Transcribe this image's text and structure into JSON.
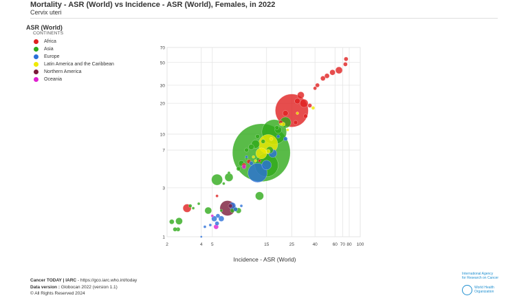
{
  "header": {
    "title": "Mortality - ASR (World) vs Incidence - ASR (World), Females, in 2022",
    "subtitle": "Cervix uteri"
  },
  "legend": {
    "title": "ASR (World)",
    "subtitle": "CONTINENTS",
    "items": [
      {
        "label": "Africa",
        "color": "#e02020"
      },
      {
        "label": "Asia",
        "color": "#2faa1a"
      },
      {
        "label": "Europe",
        "color": "#2a6fd8"
      },
      {
        "label": "Latin America and the Caribbean",
        "color": "#f0ea00"
      },
      {
        "label": "Northern America",
        "color": "#7a1a3a"
      },
      {
        "label": "Oceania",
        "color": "#e020d0"
      }
    ]
  },
  "footer": {
    "line1_bold": "Cancer TODAY | IARC",
    "line1_rest": " - https://gco.iarc.who.int/today",
    "line2_bold": "Data version :",
    "line2_rest": " Globocan 2022 (version 1.1)",
    "line3": "© All Rights Reserved 2024"
  },
  "logos": {
    "iarc_line1": "International Agency",
    "iarc_line2": "for Research on Cancer",
    "who_line1": "World Health",
    "who_line2": "Organization"
  },
  "chart_data": {
    "type": "scatter",
    "xlabel": "Incidence - ASR (World)",
    "ylabel": "",
    "xscale": "log",
    "yscale": "log",
    "xlim": [
      2,
      100
    ],
    "ylim": [
      1,
      70
    ],
    "xticks": [
      2,
      4,
      5,
      15,
      25,
      40,
      60,
      70,
      80,
      100
    ],
    "yticks": [
      1,
      3,
      7,
      10,
      20,
      30,
      50,
      70
    ],
    "grid": true,
    "legend_position": "top-left",
    "series": [
      {
        "name": "Africa",
        "color": "#e02020",
        "points": [
          {
            "x": 25.0,
            "y": 17.0,
            "size": 24
          },
          {
            "x": 30.0,
            "y": 24.0,
            "size": 5
          },
          {
            "x": 32.0,
            "y": 20.0,
            "size": 6
          },
          {
            "x": 28.0,
            "y": 21.0,
            "size": 4
          },
          {
            "x": 22.0,
            "y": 16.0,
            "size": 4
          },
          {
            "x": 36.0,
            "y": 19.0,
            "size": 3
          },
          {
            "x": 27.0,
            "y": 13.0,
            "size": 3
          },
          {
            "x": 33.0,
            "y": 15.0,
            "size": 3
          },
          {
            "x": 20.0,
            "y": 13.0,
            "size": 3
          },
          {
            "x": 40.0,
            "y": 28.0,
            "size": 2.5
          },
          {
            "x": 42.0,
            "y": 30.0,
            "size": 3
          },
          {
            "x": 47.0,
            "y": 35.0,
            "size": 3.5
          },
          {
            "x": 51.0,
            "y": 37.0,
            "size": 3.5
          },
          {
            "x": 57.0,
            "y": 40.0,
            "size": 4
          },
          {
            "x": 65.0,
            "y": 42.0,
            "size": 5
          },
          {
            "x": 74.0,
            "y": 48.0,
            "size": 3
          },
          {
            "x": 75.0,
            "y": 54.0,
            "size": 3
          },
          {
            "x": 3.0,
            "y": 1.9,
            "size": 6
          },
          {
            "x": 9.5,
            "y": 5.0,
            "size": 3
          },
          {
            "x": 10.5,
            "y": 5.4,
            "size": 3
          },
          {
            "x": 13.0,
            "y": 5.5,
            "size": 2
          },
          {
            "x": 5.5,
            "y": 2.5,
            "size": 2
          }
        ]
      },
      {
        "name": "Asia",
        "color": "#2faa1a",
        "points": [
          {
            "x": 13.5,
            "y": 6.6,
            "size": 42
          },
          {
            "x": 17.5,
            "y": 10.5,
            "size": 18
          },
          {
            "x": 15.0,
            "y": 5.0,
            "size": 17
          },
          {
            "x": 22.0,
            "y": 13.0,
            "size": 8
          },
          {
            "x": 19.0,
            "y": 11.0,
            "size": 5
          },
          {
            "x": 12.0,
            "y": 8.0,
            "size": 6
          },
          {
            "x": 11.0,
            "y": 7.5,
            "size": 4
          },
          {
            "x": 10.0,
            "y": 7.0,
            "size": 3
          },
          {
            "x": 9.0,
            "y": 5.2,
            "size": 4
          },
          {
            "x": 8.5,
            "y": 4.6,
            "size": 3
          },
          {
            "x": 16.0,
            "y": 7.0,
            "size": 5
          },
          {
            "x": 5.5,
            "y": 3.6,
            "size": 8
          },
          {
            "x": 7.0,
            "y": 3.8,
            "size": 6
          },
          {
            "x": 13.0,
            "y": 2.5,
            "size": 6
          },
          {
            "x": 4.6,
            "y": 1.8,
            "size": 5
          },
          {
            "x": 3.2,
            "y": 2.0,
            "size": 2.5
          },
          {
            "x": 3.4,
            "y": 1.9,
            "size": 2
          },
          {
            "x": 3.8,
            "y": 2.1,
            "size": 2
          },
          {
            "x": 2.55,
            "y": 1.42,
            "size": 5
          },
          {
            "x": 2.2,
            "y": 1.4,
            "size": 3.5
          },
          {
            "x": 2.5,
            "y": 1.18,
            "size": 3
          },
          {
            "x": 2.35,
            "y": 1.18,
            "size": 3
          },
          {
            "x": 8.5,
            "y": 1.8,
            "size": 4
          },
          {
            "x": 8.0,
            "y": 1.85,
            "size": 3
          },
          {
            "x": 7.5,
            "y": 1.8,
            "size": 3
          },
          {
            "x": 6.0,
            "y": 1.8,
            "size": 2
          },
          {
            "x": 10.0,
            "y": 5.8,
            "size": 2
          },
          {
            "x": 12.5,
            "y": 9.5,
            "size": 3
          },
          {
            "x": 14.0,
            "y": 8.5,
            "size": 3
          },
          {
            "x": 18.5,
            "y": 11.6,
            "size": 3
          },
          {
            "x": 7.0,
            "y": 4.2,
            "size": 2
          },
          {
            "x": 6.3,
            "y": 3.3,
            "size": 2
          }
        ]
      },
      {
        "name": "Europe",
        "color": "#2a6fd8",
        "points": [
          {
            "x": 12.5,
            "y": 4.2,
            "size": 14
          },
          {
            "x": 15.0,
            "y": 5.0,
            "size": 7
          },
          {
            "x": 17.0,
            "y": 6.5,
            "size": 6
          },
          {
            "x": 11.0,
            "y": 5.2,
            "size": 3
          },
          {
            "x": 7.5,
            "y": 2.0,
            "size": 5
          },
          {
            "x": 6.0,
            "y": 1.5,
            "size": 4
          },
          {
            "x": 5.6,
            "y": 1.6,
            "size": 3
          },
          {
            "x": 5.2,
            "y": 1.5,
            "size": 4
          },
          {
            "x": 5.5,
            "y": 1.35,
            "size": 3
          },
          {
            "x": 4.8,
            "y": 1.3,
            "size": 2
          },
          {
            "x": 8.0,
            "y": 1.85,
            "size": 3
          },
          {
            "x": 9.0,
            "y": 2.0,
            "size": 2
          },
          {
            "x": 4.3,
            "y": 1.25,
            "size": 2
          },
          {
            "x": 4.0,
            "y": 1.0,
            "size": 1.5
          },
          {
            "x": 22.0,
            "y": 9.0,
            "size": 3
          },
          {
            "x": 19.0,
            "y": 9.5,
            "size": 2.5
          },
          {
            "x": 10.0,
            "y": 6.0,
            "size": 2
          }
        ]
      },
      {
        "name": "Latin America and the Caribbean",
        "color": "#f0ea00",
        "points": [
          {
            "x": 15.5,
            "y": 8.0,
            "size": 14
          },
          {
            "x": 13.5,
            "y": 6.5,
            "size": 8
          },
          {
            "x": 15.5,
            "y": 6.8,
            "size": 3
          },
          {
            "x": 21.0,
            "y": 12.5,
            "size": 3
          },
          {
            "x": 20.0,
            "y": 12.5,
            "size": 2
          },
          {
            "x": 23.0,
            "y": 11.0,
            "size": 2
          },
          {
            "x": 38.5,
            "y": 18.0,
            "size": 2.5
          },
          {
            "x": 28.0,
            "y": 16.0,
            "size": 2
          },
          {
            "x": 16.5,
            "y": 9.0,
            "size": 2.5
          },
          {
            "x": 12.0,
            "y": 5.5,
            "size": 2
          },
          {
            "x": 11.5,
            "y": 6.0,
            "size": 2
          }
        ]
      },
      {
        "name": "Northern America",
        "color": "#7a1a3a",
        "points": [
          {
            "x": 6.8,
            "y": 1.9,
            "size": 11
          },
          {
            "x": 7.2,
            "y": 2.0,
            "size": 3
          }
        ]
      },
      {
        "name": "Oceania",
        "color": "#e020d0",
        "points": [
          {
            "x": 5.4,
            "y": 1.25,
            "size": 3.5
          },
          {
            "x": 9.5,
            "y": 4.8,
            "size": 3
          },
          {
            "x": 5.0,
            "y": 1.6,
            "size": 2
          }
        ]
      }
    ]
  }
}
